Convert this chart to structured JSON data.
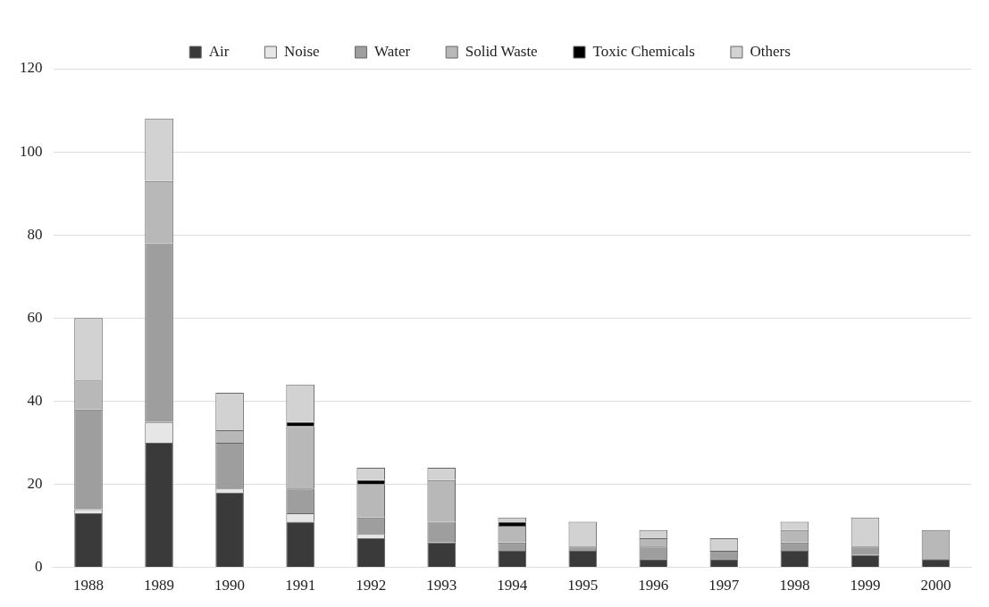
{
  "chart_data": {
    "type": "bar",
    "stacked": true,
    "categories": [
      "1988",
      "1989",
      "1990",
      "1991",
      "1992",
      "1993",
      "1994",
      "1995",
      "1996",
      "1997",
      "1998",
      "1999",
      "2000"
    ],
    "series": [
      {
        "name": "Air",
        "color": "#3a3a3a",
        "values": [
          13,
          30,
          18,
          11,
          7,
          6,
          4,
          4,
          2,
          2,
          4,
          3,
          2
        ]
      },
      {
        "name": "Noise",
        "color": "#e6e6e6",
        "values": [
          1,
          5,
          1,
          2,
          1,
          0,
          0,
          0,
          0,
          0,
          0,
          0,
          0
        ]
      },
      {
        "name": "Water",
        "color": "#9e9e9e",
        "values": [
          24,
          43,
          11,
          6,
          4,
          5,
          2,
          1,
          3,
          2,
          2,
          2,
          0
        ]
      },
      {
        "name": "Solid Waste",
        "color": "#b8b8b8",
        "values": [
          7,
          15,
          3,
          15,
          8,
          10,
          4,
          0,
          2,
          0,
          3,
          0,
          7
        ]
      },
      {
        "name": "Toxic Chemicals",
        "color": "#000000",
        "values": [
          0,
          0,
          0,
          1,
          1,
          0,
          1,
          0,
          0,
          0,
          0,
          0,
          0
        ]
      },
      {
        "name": "Others",
        "color": "#d2d2d2",
        "values": [
          15,
          15,
          9,
          9,
          3,
          3,
          1,
          6,
          2,
          3,
          2,
          7,
          0
        ]
      }
    ],
    "ylim": [
      0,
      120
    ],
    "yticks": [
      0,
      20,
      40,
      60,
      80,
      100,
      120
    ],
    "grid": "y",
    "legend": "top"
  }
}
